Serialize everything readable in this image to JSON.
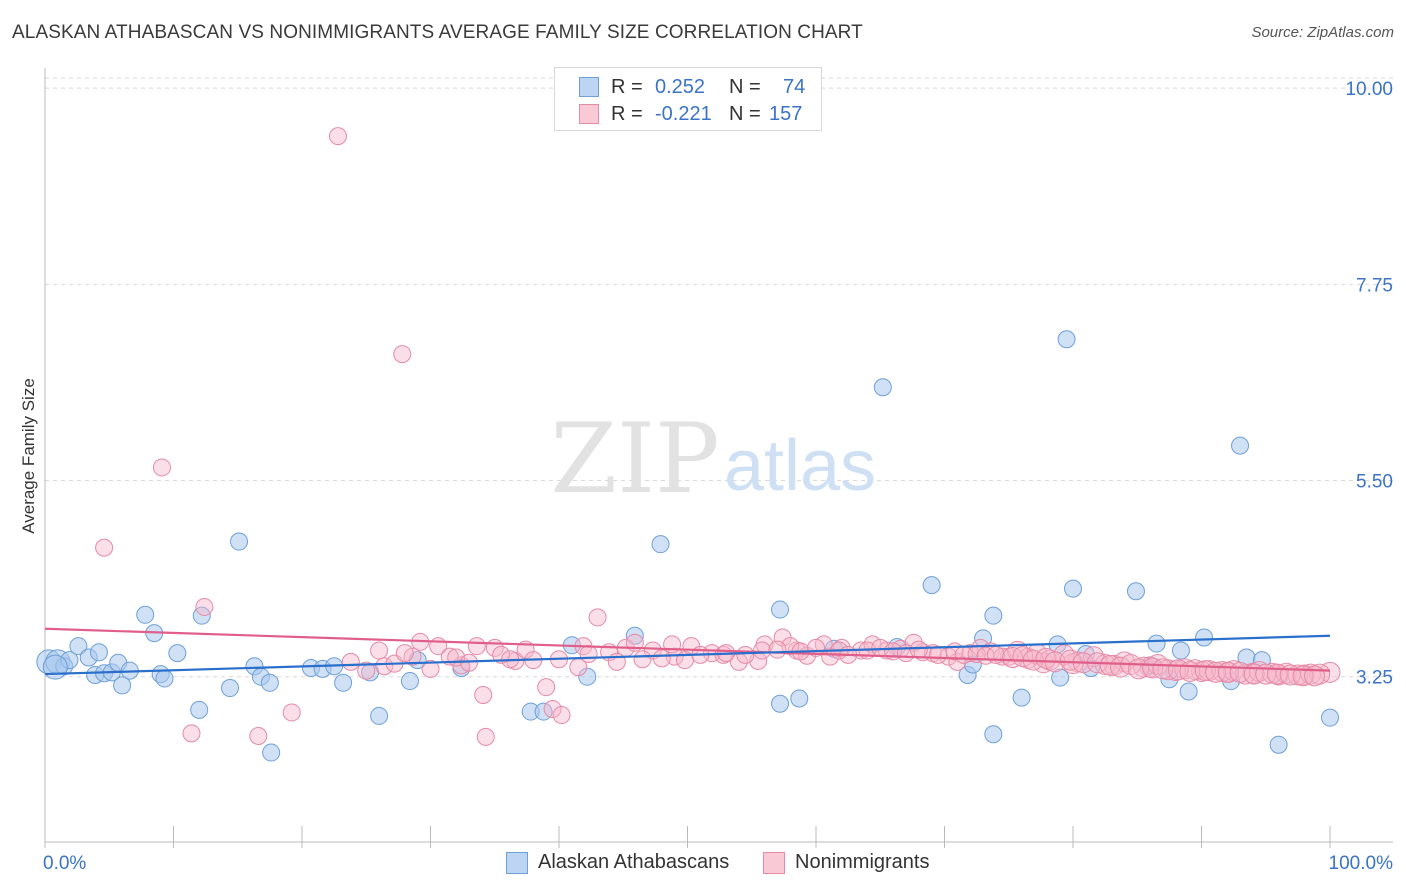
{
  "header": {
    "title": "ALASKAN ATHABASCAN VS NONIMMIGRANTS AVERAGE FAMILY SIZE CORRELATION CHART",
    "source": "Source: ZipAtlas.com"
  },
  "watermark": {
    "zip": "ZIP",
    "atlas": "atlas"
  },
  "legend_top": {
    "rows": [
      {
        "r_label": "R =",
        "r_value": "0.252",
        "n_label": "N =",
        "n_value": "74"
      },
      {
        "r_label": "R =",
        "r_value": "-0.221",
        "n_label": "N =",
        "n_value": "157"
      }
    ]
  },
  "legend_bottom": {
    "series_a": "Alaskan Athabascans",
    "series_b": "Nonimmigrants"
  },
  "colors": {
    "blue_fill": "#a9c9ef",
    "blue_stroke": "#6e9fd8",
    "blue_line": "#2a6fcc",
    "pink_fill": "#f6b9cb",
    "pink_stroke": "#e68aa6",
    "pink_line": "#e05f8a",
    "tick_label": "#3a73c8",
    "grid": "#d9d9d9"
  },
  "chart_data": {
    "type": "scatter",
    "title": "ALASKAN ATHABASCAN VS NONIMMIGRANTS AVERAGE FAMILY SIZE CORRELATION CHART",
    "xlabel": "",
    "ylabel": "Average Family Size",
    "xlim": [
      0,
      100
    ],
    "ylim": [
      1.4,
      10.3
    ],
    "x_tick_labels": [
      "0.0%",
      "100.0%"
    ],
    "y_ticks": [
      3.25,
      5.5,
      7.75,
      10.0
    ],
    "y_tick_labels": [
      "3.25",
      "5.50",
      "7.75",
      "10.00"
    ],
    "grid": true,
    "legend_position": "top-center",
    "series": [
      {
        "name": "Alaskan Athabascans",
        "r": 0.252,
        "n": 74,
        "trend": {
          "x": [
            0,
            100
          ],
          "y": [
            3.28,
            3.72
          ]
        },
        "points": [
          [
            0.3,
            3.42
          ],
          [
            1.0,
            3.42
          ],
          [
            1.5,
            3.37
          ],
          [
            1.9,
            3.44
          ],
          [
            2.6,
            3.6
          ],
          [
            3.4,
            3.47
          ],
          [
            3.9,
            3.27
          ],
          [
            4.2,
            3.53
          ],
          [
            4.6,
            3.29
          ],
          [
            5.2,
            3.3
          ],
          [
            5.7,
            3.41
          ],
          [
            6.0,
            3.15
          ],
          [
            6.6,
            3.32
          ],
          [
            7.8,
            3.96
          ],
          [
            8.5,
            3.75
          ],
          [
            9.0,
            3.28
          ],
          [
            9.3,
            3.23
          ],
          [
            10.3,
            3.52
          ],
          [
            12.0,
            2.87
          ],
          [
            12.2,
            3.95
          ],
          [
            14.4,
            3.12
          ],
          [
            15.1,
            4.8
          ],
          [
            16.3,
            3.37
          ],
          [
            16.8,
            3.25
          ],
          [
            17.5,
            3.18
          ],
          [
            17.6,
            2.38
          ],
          [
            20.7,
            3.35
          ],
          [
            21.6,
            3.34
          ],
          [
            22.5,
            3.37
          ],
          [
            23.2,
            3.18
          ],
          [
            25.3,
            3.3
          ],
          [
            26.0,
            2.8
          ],
          [
            28.4,
            3.2
          ],
          [
            29.0,
            3.44
          ],
          [
            32.4,
            3.35
          ],
          [
            37.8,
            2.85
          ],
          [
            38.8,
            2.85
          ],
          [
            41.0,
            3.61
          ],
          [
            42.2,
            3.25
          ],
          [
            45.9,
            3.72
          ],
          [
            47.9,
            4.77
          ],
          [
            57.2,
            4.02
          ],
          [
            58.7,
            3.0
          ],
          [
            65.2,
            6.57
          ],
          [
            69.0,
            4.3
          ],
          [
            71.8,
            3.27
          ],
          [
            73.0,
            3.69
          ],
          [
            79.0,
            3.24
          ],
          [
            73.8,
            3.95
          ],
          [
            73.8,
            2.59
          ],
          [
            78.8,
            3.62
          ],
          [
            79.5,
            7.12
          ],
          [
            80.0,
            4.26
          ],
          [
            81.4,
            3.35
          ],
          [
            84.9,
            4.23
          ],
          [
            86.5,
            3.63
          ],
          [
            87.5,
            3.22
          ],
          [
            88.4,
            3.55
          ],
          [
            89.0,
            3.08
          ],
          [
            93.0,
            5.9
          ],
          [
            93.5,
            3.47
          ],
          [
            94.7,
            3.44
          ],
          [
            96.0,
            2.47
          ],
          [
            57.2,
            2.94
          ],
          [
            61.4,
            3.57
          ],
          [
            66.3,
            3.59
          ],
          [
            72.2,
            3.39
          ],
          [
            76.0,
            3.01
          ],
          [
            81.0,
            3.51
          ],
          [
            86.0,
            3.38
          ],
          [
            90.2,
            3.7
          ],
          [
            92.3,
            3.2
          ],
          [
            100.0,
            2.78
          ],
          [
            0.8,
            3.36
          ]
        ]
      },
      {
        "name": "Nonimmigrants",
        "r": -0.221,
        "n": 157,
        "trend": {
          "x": [
            0,
            100
          ],
          "y": [
            3.8,
            3.32
          ]
        },
        "points": [
          [
            22.8,
            9.45
          ],
          [
            27.8,
            6.95
          ],
          [
            9.1,
            5.65
          ],
          [
            4.6,
            4.73
          ],
          [
            12.4,
            4.05
          ],
          [
            26.0,
            3.55
          ],
          [
            28.6,
            3.48
          ],
          [
            32.4,
            3.38
          ],
          [
            35.0,
            3.58
          ],
          [
            40.0,
            3.45
          ],
          [
            43.0,
            3.93
          ],
          [
            45.2,
            3.58
          ],
          [
            49.0,
            3.48
          ],
          [
            51.9,
            3.52
          ],
          [
            55.5,
            3.43
          ],
          [
            58.5,
            3.55
          ],
          [
            61.1,
            3.48
          ],
          [
            65.5,
            3.55
          ],
          [
            68.3,
            3.53
          ],
          [
            72.0,
            3.52
          ],
          [
            75.0,
            3.48
          ],
          [
            77.7,
            3.41
          ],
          [
            80.4,
            3.42
          ],
          [
            83.2,
            3.38
          ],
          [
            86.0,
            3.36
          ],
          [
            88.0,
            3.32
          ],
          [
            90.0,
            3.31
          ],
          [
            92.0,
            3.3
          ],
          [
            94.0,
            3.29
          ],
          [
            96.0,
            3.27
          ],
          [
            98.0,
            3.27
          ],
          [
            100.0,
            3.3
          ],
          [
            11.4,
            2.6
          ],
          [
            16.6,
            2.57
          ],
          [
            19.2,
            2.84
          ],
          [
            34.1,
            3.04
          ],
          [
            34.3,
            2.56
          ],
          [
            39.0,
            3.13
          ],
          [
            39.5,
            2.88
          ],
          [
            40.2,
            2.81
          ],
          [
            29.2,
            3.65
          ],
          [
            30.6,
            3.6
          ],
          [
            31.5,
            3.48
          ],
          [
            33.6,
            3.6
          ],
          [
            36.6,
            3.43
          ],
          [
            37.4,
            3.56
          ],
          [
            41.9,
            3.6
          ],
          [
            43.9,
            3.53
          ],
          [
            45.9,
            3.64
          ],
          [
            47.3,
            3.55
          ],
          [
            48.8,
            3.62
          ],
          [
            50.3,
            3.6
          ],
          [
            52.8,
            3.5
          ],
          [
            54.0,
            3.42
          ],
          [
            56.0,
            3.62
          ],
          [
            57.4,
            3.7
          ],
          [
            58.0,
            3.6
          ],
          [
            59.3,
            3.49
          ],
          [
            60.6,
            3.62
          ],
          [
            62.0,
            3.58
          ],
          [
            63.5,
            3.55
          ],
          [
            64.4,
            3.62
          ],
          [
            66.6,
            3.57
          ],
          [
            67.6,
            3.64
          ],
          [
            69.1,
            3.52
          ],
          [
            70.3,
            3.48
          ],
          [
            71.0,
            3.42
          ],
          [
            72.8,
            3.58
          ],
          [
            73.6,
            3.54
          ],
          [
            74.5,
            3.48
          ],
          [
            75.7,
            3.54
          ],
          [
            76.5,
            3.46
          ],
          [
            77.2,
            3.51
          ],
          [
            78.2,
            3.44
          ],
          [
            79.3,
            3.5
          ],
          [
            80.0,
            3.4
          ],
          [
            81.6,
            3.48
          ],
          [
            82.5,
            3.39
          ],
          [
            84.0,
            3.42
          ],
          [
            85.5,
            3.36
          ],
          [
            86.6,
            3.39
          ],
          [
            87.4,
            3.33
          ],
          [
            88.7,
            3.34
          ],
          [
            89.5,
            3.33
          ],
          [
            90.6,
            3.32
          ],
          [
            91.6,
            3.31
          ],
          [
            92.5,
            3.32
          ],
          [
            93.4,
            3.28
          ],
          [
            94.5,
            3.31
          ],
          [
            95.5,
            3.29
          ],
          [
            96.6,
            3.29
          ],
          [
            97.5,
            3.27
          ],
          [
            98.5,
            3.28
          ],
          [
            99.2,
            3.28
          ],
          [
            23.8,
            3.42
          ],
          [
            25.0,
            3.32
          ],
          [
            26.4,
            3.37
          ],
          [
            27.2,
            3.4
          ],
          [
            28.0,
            3.52
          ],
          [
            30.0,
            3.34
          ],
          [
            32.0,
            3.47
          ],
          [
            33.0,
            3.41
          ],
          [
            35.5,
            3.5
          ],
          [
            36.2,
            3.45
          ],
          [
            38.0,
            3.44
          ],
          [
            41.5,
            3.36
          ],
          [
            42.3,
            3.51
          ],
          [
            44.5,
            3.42
          ],
          [
            46.5,
            3.45
          ],
          [
            48.0,
            3.46
          ],
          [
            49.8,
            3.44
          ],
          [
            51.0,
            3.5
          ],
          [
            53.0,
            3.52
          ],
          [
            54.5,
            3.5
          ],
          [
            55.8,
            3.55
          ],
          [
            57.0,
            3.56
          ],
          [
            58.8,
            3.54
          ],
          [
            60.0,
            3.58
          ],
          [
            61.8,
            3.55
          ],
          [
            62.5,
            3.5
          ],
          [
            64.0,
            3.55
          ],
          [
            65.0,
            3.58
          ],
          [
            66.0,
            3.54
          ],
          [
            67.0,
            3.52
          ],
          [
            68.0,
            3.56
          ],
          [
            69.5,
            3.5
          ],
          [
            70.8,
            3.54
          ],
          [
            71.5,
            3.5
          ],
          [
            72.5,
            3.51
          ],
          [
            73.2,
            3.49
          ],
          [
            74.0,
            3.5
          ],
          [
            75.3,
            3.47
          ],
          [
            76.1,
            3.48
          ],
          [
            76.9,
            3.44
          ],
          [
            77.9,
            3.46
          ],
          [
            78.6,
            3.42
          ],
          [
            79.8,
            3.44
          ],
          [
            80.8,
            3.41
          ],
          [
            81.9,
            3.41
          ],
          [
            82.9,
            3.38
          ],
          [
            83.7,
            3.36
          ],
          [
            84.5,
            3.39
          ],
          [
            85.1,
            3.34
          ],
          [
            86.2,
            3.35
          ],
          [
            87.0,
            3.34
          ],
          [
            88.2,
            3.33
          ],
          [
            89.1,
            3.31
          ],
          [
            90.3,
            3.32
          ],
          [
            91.1,
            3.3
          ],
          [
            92.1,
            3.3
          ],
          [
            93.0,
            3.3
          ],
          [
            94.1,
            3.28
          ],
          [
            95.0,
            3.28
          ],
          [
            95.9,
            3.28
          ],
          [
            96.9,
            3.27
          ],
          [
            97.9,
            3.26
          ],
          [
            98.8,
            3.26
          ]
        ]
      }
    ]
  }
}
